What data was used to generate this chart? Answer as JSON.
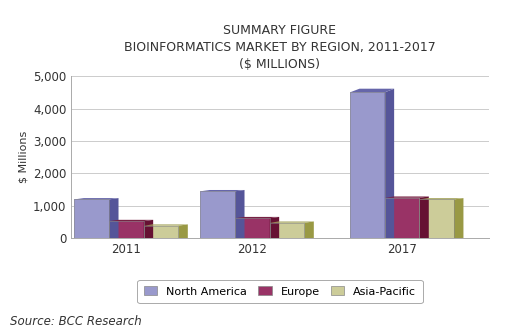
{
  "title_line1": "SUMMARY FIGURE",
  "title_line2": "BIOINFORMATICS MARKET BY REGION, 2011-2017",
  "title_line3": "($ MILLIONS)",
  "years": [
    "2011",
    "2012",
    "2017"
  ],
  "north_america": [
    1200,
    1450,
    4500
  ],
  "europe": [
    530,
    620,
    1250
  ],
  "asia_pacific": [
    390,
    480,
    1200
  ],
  "north_america_color": "#9999CC",
  "north_america_top": "#6666AA",
  "north_america_side": "#555599",
  "europe_color": "#993366",
  "europe_top": "#772244",
  "europe_side": "#661133",
  "asia_pacific_color": "#CCCC99",
  "asia_pacific_top": "#AAAA66",
  "asia_pacific_side": "#999944",
  "ylabel": "$ Millions",
  "ylim": [
    0,
    5000
  ],
  "yticks": [
    0,
    1000,
    2000,
    3000,
    4000,
    5000
  ],
  "source_text": "Source: BCC Research",
  "title_color": "#333333",
  "title_fontsize": 9,
  "bar_width": 0.22,
  "legend_labels": [
    "North America",
    "Europe",
    "Asia-Pacific"
  ],
  "grid_color": "#cccccc",
  "bg_color": "#ffffff"
}
